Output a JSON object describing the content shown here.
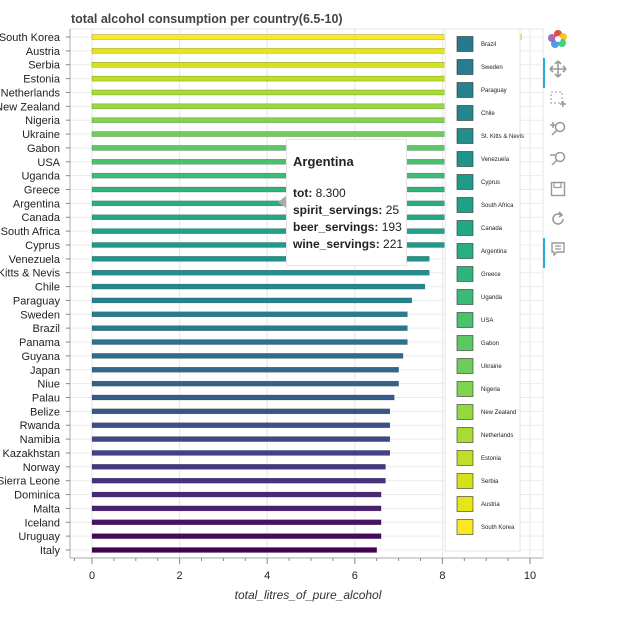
{
  "chart_data": {
    "type": "bar",
    "orientation": "horizontal",
    "title": "total alcohol consumption per country(6.5-10)",
    "xlabel": "total_litres_of_pure_alcohol",
    "ylabel": "",
    "xlim": [
      -0.4,
      10.2
    ],
    "xticks": [
      0,
      2,
      4,
      6,
      8,
      10
    ],
    "grid": true,
    "categories": [
      "South Korea",
      "Austria",
      "Serbia",
      "Estonia",
      "Netherlands",
      "New Zealand",
      "Nigeria",
      "Ukraine",
      "Gabon",
      "USA",
      "Uganda",
      "Greece",
      "Argentina",
      "Canada",
      "South Africa",
      "Cyprus",
      "Venezuela",
      "St. Kitts & Nevis",
      "Chile",
      "Paraguay",
      "Sweden",
      "Brazil",
      "Panama",
      "Guyana",
      "Japan",
      "Niue",
      "Palau",
      "Belize",
      "Rwanda",
      "Namibia",
      "Kazakhstan",
      "Norway",
      "Sierra Leone",
      "Dominica",
      "Malta",
      "Iceland",
      "Uruguay",
      "Italy"
    ],
    "values": [
      9.8,
      9.7,
      9.6,
      9.5,
      9.4,
      9.3,
      9.1,
      8.9,
      8.9,
      8.7,
      8.3,
      8.3,
      8.3,
      8.2,
      8.2,
      8.2,
      7.7,
      7.7,
      7.6,
      7.3,
      7.2,
      7.2,
      7.2,
      7.1,
      7.0,
      7.0,
      6.9,
      6.8,
      6.8,
      6.8,
      6.8,
      6.7,
      6.7,
      6.6,
      6.6,
      6.6,
      6.6,
      6.5
    ],
    "colors": [
      "#fde725",
      "#e7e419",
      "#d1e21b",
      "#bddf26",
      "#a8db34",
      "#95d840",
      "#7fd34e",
      "#6ccd5a",
      "#5ac864",
      "#4ac16d",
      "#3bbb75",
      "#2fb47c",
      "#28ae80",
      "#22a785",
      "#1fa088",
      "#1e9a8a",
      "#1f948c",
      "#218e8d",
      "#23888e",
      "#25828e",
      "#277c8e",
      "#29798e",
      "#2c728e",
      "#2e6d8e",
      "#31668e",
      "#33628d",
      "#365c8d",
      "#39558c",
      "#3c4f8a",
      "#3f4889",
      "#424086",
      "#453882",
      "#46327e",
      "#482878",
      "#482173",
      "#471164",
      "#460a5d",
      "#440154"
    ],
    "legend": {
      "placement": "right",
      "items": [
        "Brazil",
        "Sweden",
        "Paraguay",
        "Chile",
        "St. Kitts & Nevis",
        "Venezuela",
        "Cyprus",
        "South Africa",
        "Canada",
        "Argentina",
        "Greece",
        "Uganda",
        "USA",
        "Gabon",
        "Ukraine",
        "Nigeria",
        "New Zealand",
        "Netherlands",
        "Estonia",
        "Serbia",
        "Austria",
        "South Korea"
      ]
    },
    "tooltip": {
      "title": "Argentina",
      "rows": [
        {
          "key": "tot:",
          "value": "8.300"
        },
        {
          "key": "spirit_servings:",
          "value": "25"
        },
        {
          "key": "beer_servings:",
          "value": "193"
        },
        {
          "key": "wine_servings:",
          "value": "221"
        }
      ]
    }
  },
  "toolbar": {
    "tools": [
      "bokeh-logo-icon",
      "pan-icon",
      "box-zoom-icon",
      "zoom-in-icon",
      "zoom-out-icon",
      "save-icon",
      "reset-icon",
      "hover-icon"
    ]
  }
}
